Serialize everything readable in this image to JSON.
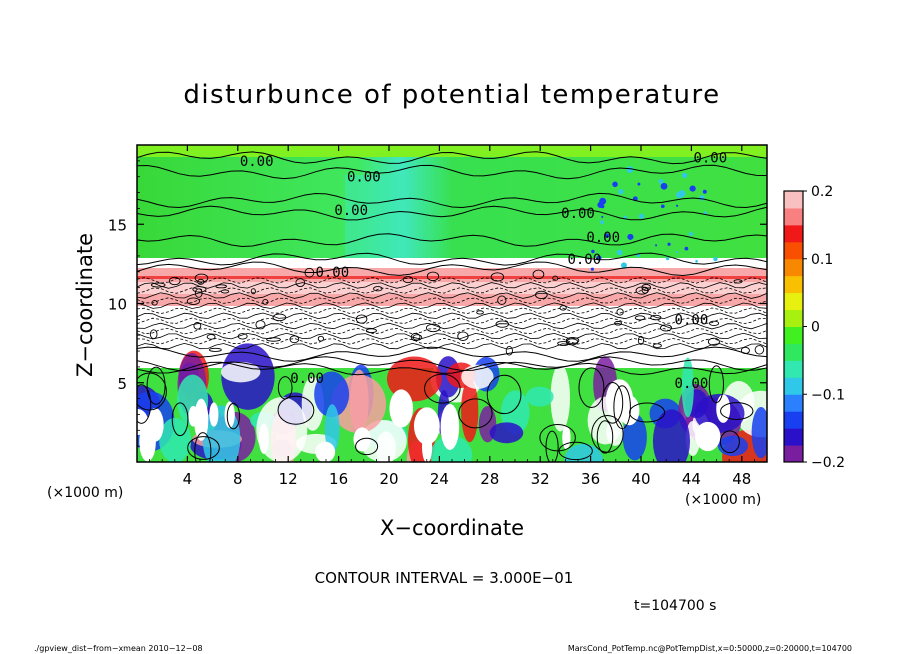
{
  "chart_data": {
    "type": "heatmap",
    "title": "disturbunce of potential temperature",
    "xlabel": "X−coordinate",
    "ylabel": "Z−coordinate",
    "x_unit_left": "(×1000 m)",
    "x_unit_right": "(×1000 m)",
    "xlim": [
      0,
      50
    ],
    "ylim": [
      0,
      20
    ],
    "x_ticks": [
      4,
      8,
      12,
      16,
      20,
      24,
      28,
      32,
      36,
      40,
      44,
      48
    ],
    "x_tick_labels": [
      "4",
      "8",
      "12",
      "16",
      "20",
      "24",
      "28",
      "32",
      "36",
      "40",
      "44",
      "48"
    ],
    "y_ticks": [
      5,
      10,
      15
    ],
    "y_tick_labels": [
      "5",
      "10",
      "15"
    ],
    "colorbar": {
      "range": [
        -0.2,
        0.2
      ],
      "ticks": [
        0.2,
        0.1,
        0,
        -0.1,
        -0.2
      ],
      "tick_labels": [
        "0.2",
        "0.1",
        "0",
        "−0.1",
        "−0.2"
      ],
      "colors": [
        "#7a1ea0",
        "#2a10c8",
        "#1840f0",
        "#2a80ff",
        "#30c8e8",
        "#30e8b0",
        "#30e860",
        "#40f020",
        "#a8f010",
        "#e8f010",
        "#f8c000",
        "#f88800",
        "#f85000",
        "#f01818",
        "#f88080",
        "#f8c0c0"
      ]
    },
    "contour_labels": [
      {
        "x": 9.5,
        "y": 19.0,
        "text": "0.00"
      },
      {
        "x": 18.0,
        "y": 18.0,
        "text": "0.00"
      },
      {
        "x": 17.0,
        "y": 15.9,
        "text": "0.00"
      },
      {
        "x": 35.0,
        "y": 15.7,
        "text": "0.00"
      },
      {
        "x": 37.0,
        "y": 14.2,
        "text": "0.00"
      },
      {
        "x": 15.5,
        "y": 12.0,
        "text": "0.00"
      },
      {
        "x": 35.5,
        "y": 12.8,
        "text": "0.00"
      },
      {
        "x": 45.5,
        "y": 19.2,
        "text": "0.00"
      },
      {
        "x": 13.5,
        "y": 5.3,
        "text": "0.00"
      },
      {
        "x": 44.0,
        "y": 5.0,
        "text": "0.00"
      },
      {
        "x": 44.0,
        "y": 9.0,
        "text": "0.00"
      }
    ],
    "contour_interval_text": "CONTOUR INTERVAL = 3.000E−01",
    "time_text": "t=104700 s"
  },
  "footer": {
    "left": "./gpview_dist−from−xmean  2010−12−08",
    "right": "MarsCond_PotTemp.nc@PotTempDist,x=0:50000,z=0:20000,t=104700"
  },
  "colors": {
    "background": "#ffffff",
    "green_upper": "#30e030",
    "pink_band": "#f8a0a0",
    "white_region": "#ffffff"
  }
}
